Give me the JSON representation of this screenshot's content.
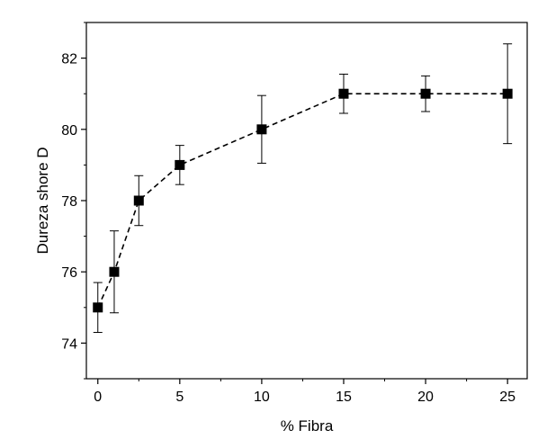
{
  "chart_data": {
    "type": "scatter",
    "title": "",
    "xlabel": "%  Fibra",
    "ylabel": "Dureza shore D",
    "xlim": [
      -0.7,
      26.2
    ],
    "ylim": [
      73.0,
      83.0
    ],
    "xticks": [
      0,
      5,
      10,
      15,
      20,
      25
    ],
    "yticks": [
      74,
      76,
      78,
      80,
      82
    ],
    "grid": false,
    "legend": "none",
    "line_style": "dashed",
    "marker": "square",
    "series": [
      {
        "x": [
          0,
          1,
          2.5,
          5,
          10,
          15,
          20,
          25
        ],
        "y": [
          75,
          76,
          78,
          79,
          80,
          81,
          81,
          81
        ],
        "err_low": [
          74.3,
          74.85,
          77.3,
          78.45,
          79.05,
          80.45,
          80.5,
          79.6
        ],
        "err_high": [
          75.7,
          77.15,
          78.7,
          79.55,
          80.95,
          81.55,
          81.5,
          82.4
        ]
      }
    ],
    "colors": {
      "marker": "#000000",
      "line": "#000000",
      "axis": "#000000"
    }
  }
}
